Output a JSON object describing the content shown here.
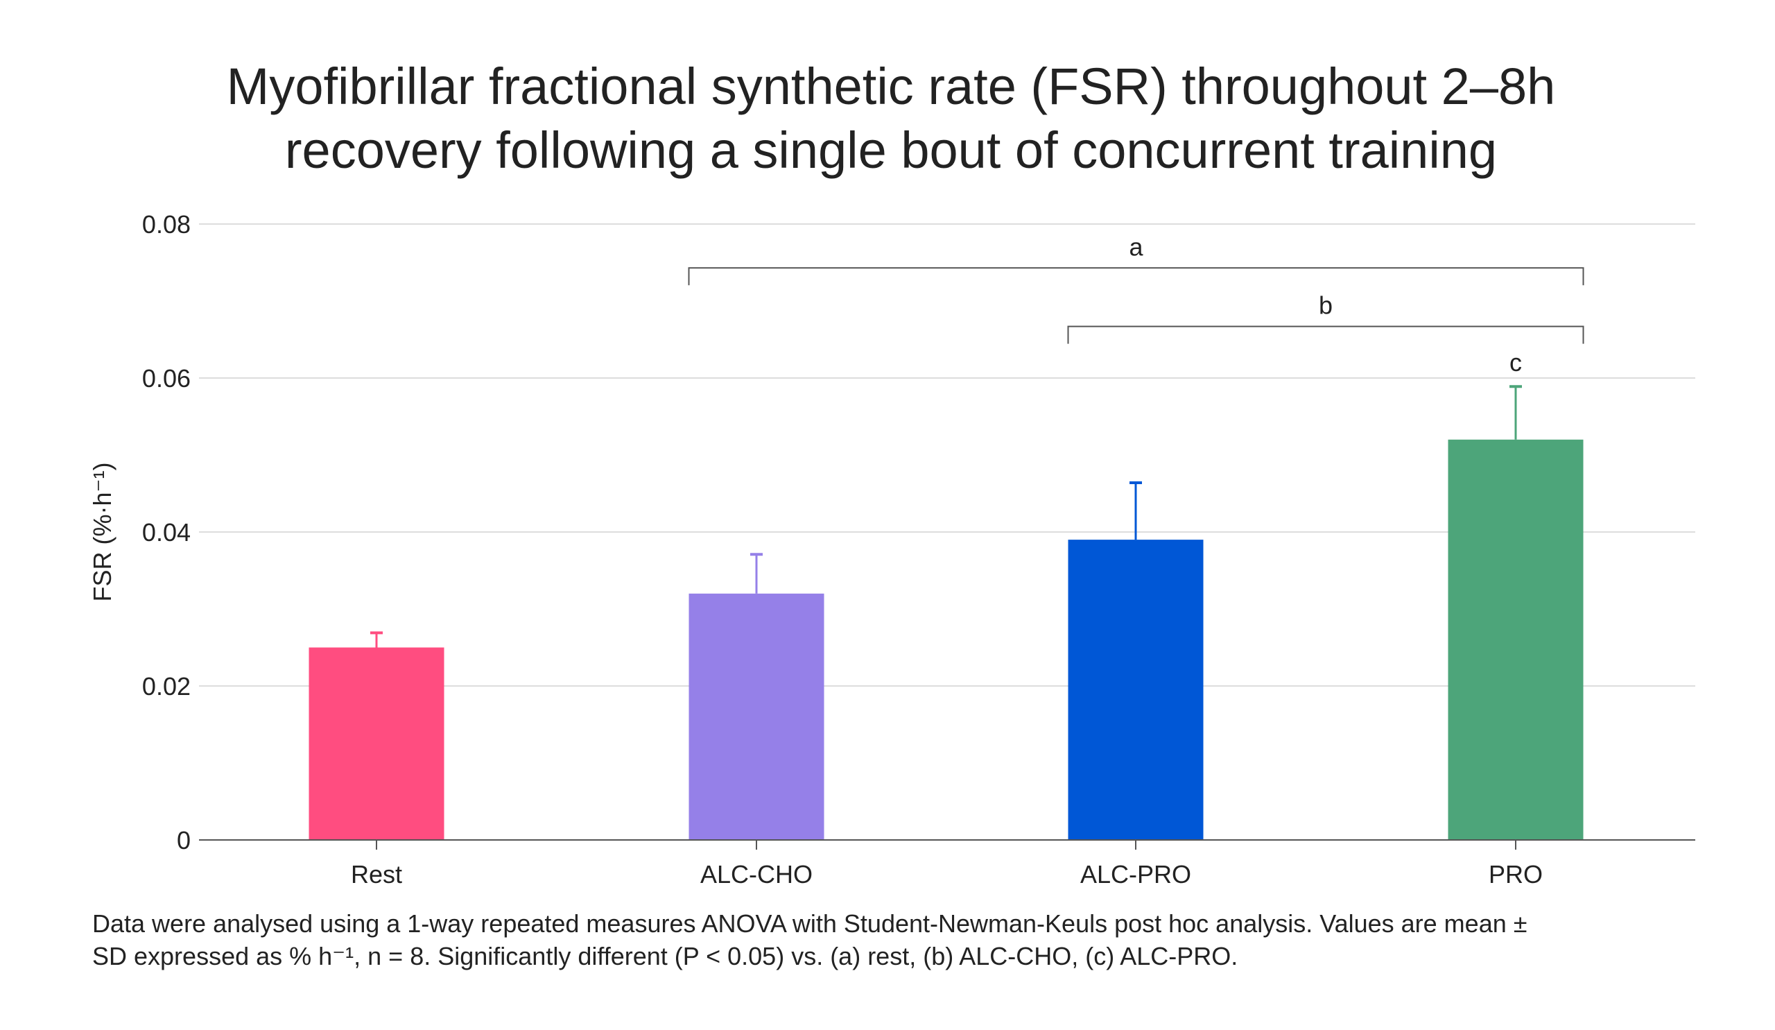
{
  "chart_data": {
    "type": "bar",
    "title": [
      "Myofibrillar fractional synthetic rate (FSR) throughout 2–8h",
      "recovery following a single bout of concurrent training"
    ],
    "xlabel": "",
    "ylabel": "FSR (%·h⁻¹)",
    "ylim": [
      0,
      0.08
    ],
    "yticks": [
      0,
      0.02,
      0.04,
      0.06,
      0.08
    ],
    "ytick_labels": [
      "0",
      "0.02",
      "0.04",
      "0.06",
      "0.08"
    ],
    "grid": true,
    "categories": [
      "Rest",
      "ALC-CHO",
      "ALC-PRO",
      "PRO"
    ],
    "values": [
      0.025,
      0.032,
      0.039,
      0.052
    ],
    "errors": [
      0.0019,
      0.0051,
      0.0074,
      0.0069
    ],
    "colors": [
      "#FF4D80",
      "#9580E8",
      "#0057D6",
      "#4DA57A"
    ],
    "annotations": [
      {
        "label": "a",
        "from": "ALC-CHO",
        "to": "PRO",
        "level": 0.0743
      },
      {
        "label": "b",
        "from": "ALC-PRO",
        "to": "PRO",
        "level": 0.0667
      },
      {
        "label": "c",
        "over": "PRO"
      }
    ]
  },
  "caption": {
    "line1": "Data were analysed using a 1-way repeated measures ANOVA with Student-Newman-Keuls post hoc analysis. Values are mean ±",
    "line2": "SD expressed as % h⁻¹, n = 8. Significantly different (P < 0.05) vs. (a) rest, (b) ALC-CHO, (c) ALC-PRO."
  }
}
